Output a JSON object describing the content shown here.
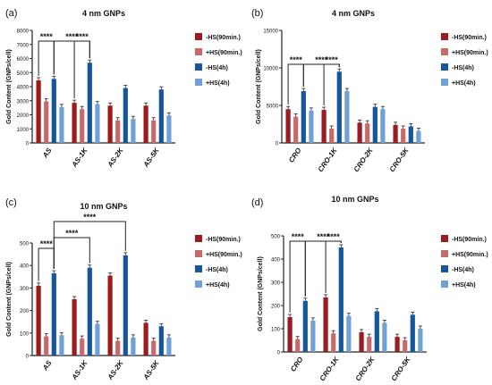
{
  "colors": {
    "dark_red": "#9b1b1e",
    "light_red": "#c96a6a",
    "dark_blue": "#15569c",
    "light_blue": "#6fa0d6"
  },
  "chart_data": [
    {
      "type": "bar",
      "panel_label": "(a)",
      "title": "4 nm GNPs",
      "ylabel": "Gold Content (GNPs/cell)",
      "categories": [
        "AS",
        "AS-1K",
        "AS-2K",
        "AS-5K"
      ],
      "ylim": [
        0,
        8000
      ],
      "yticks": [
        "0",
        "1000",
        "2000",
        "3000",
        "4000",
        "5000",
        "6000",
        "7000",
        "8000"
      ],
      "series": [
        {
          "name": "-HS(90min.)",
          "values": [
            4450,
            2850,
            2650,
            2650
          ]
        },
        {
          "name": "+HS(90min.)",
          "values": [
            2950,
            2400,
            1600,
            1600
          ]
        },
        {
          "name": "-HS(4h)",
          "values": [
            4550,
            5700,
            3900,
            3800
          ]
        },
        {
          "name": "+HS(4h)",
          "values": [
            2550,
            2750,
            1700,
            1950
          ]
        }
      ],
      "significance": [
        "****",
        "****",
        "****"
      ],
      "legend": [
        "-HS(90min.)",
        "+HS(90min.)",
        "-HS(4h)",
        "+HS(4h)"
      ]
    },
    {
      "type": "bar",
      "panel_label": "(b)",
      "title": "4 nm GNPs",
      "ylabel": "Gold Content (GNPs/cell)",
      "categories": [
        "CRO",
        "CRO-1K",
        "CRO-2K",
        "CRO-5K"
      ],
      "ylim": [
        0,
        15000
      ],
      "yticks": [
        "0",
        "5000",
        "10000",
        "15000"
      ],
      "series": [
        {
          "name": "-HS(90min.)",
          "values": [
            4500,
            4400,
            2700,
            2400
          ]
        },
        {
          "name": "+HS(90min.)",
          "values": [
            3500,
            1900,
            2600,
            1900
          ]
        },
        {
          "name": "-HS(4h)",
          "values": [
            6900,
            9500,
            4800,
            2200
          ]
        },
        {
          "name": "+HS(4h)",
          "values": [
            4300,
            6900,
            4500,
            1600
          ]
        }
      ],
      "significance": [
        "****",
        "****",
        "****"
      ],
      "legend": [
        "-HS(90min.)",
        "+HS(90min.)",
        "-HS(4h)",
        "+HS(4h)"
      ]
    },
    {
      "type": "bar",
      "panel_label": "(c)",
      "title": "10 nm GNPs",
      "ylabel": "Gold Content (GNPs/cell)",
      "categories": [
        "AS",
        "AS-1K",
        "AS-2K",
        "AS-5K"
      ],
      "ylim": [
        0,
        500
      ],
      "yticks": [
        "0",
        "100",
        "200",
        "300",
        "400",
        "500"
      ],
      "series": [
        {
          "name": "-HS(90min.)",
          "values": [
            310,
            250,
            355,
            145
          ]
        },
        {
          "name": "+HS(90min.)",
          "values": [
            85,
            75,
            65,
            65
          ]
        },
        {
          "name": "-HS(4h)",
          "values": [
            365,
            390,
            445,
            130
          ]
        },
        {
          "name": "+HS(4h)",
          "values": [
            90,
            140,
            80,
            80
          ]
        }
      ],
      "significance": [
        "****",
        "****",
        "****"
      ],
      "legend": [
        "-HS(90min.)",
        "+HS(90min.)",
        "-HS(4h)",
        "+HS(4h)"
      ]
    },
    {
      "type": "bar",
      "panel_label": "(d)",
      "title": "10 nm GNPs",
      "ylabel": "Gold Content (GNPs/cell)",
      "categories": [
        "CRO",
        "CRO-1K",
        "CRO-2K",
        "CRO-5K"
      ],
      "ylim": [
        0,
        500
      ],
      "yticks": [
        "0",
        "100",
        "200",
        "300",
        "400",
        "500"
      ],
      "series": [
        {
          "name": "-HS(90min.)",
          "values": [
            150,
            235,
            85,
            65
          ]
        },
        {
          "name": "+HS(90min.)",
          "values": [
            55,
            80,
            65,
            50
          ]
        },
        {
          "name": "-HS(4h)",
          "values": [
            220,
            450,
            175,
            160
          ]
        },
        {
          "name": "+HS(4h)",
          "values": [
            135,
            155,
            125,
            100
          ]
        }
      ],
      "significance": [
        "****",
        "****",
        "****"
      ],
      "legend": [
        "-HS(90min.)",
        "+HS(90min.)",
        "-HS(4h)",
        "+HS(4h)"
      ]
    }
  ]
}
